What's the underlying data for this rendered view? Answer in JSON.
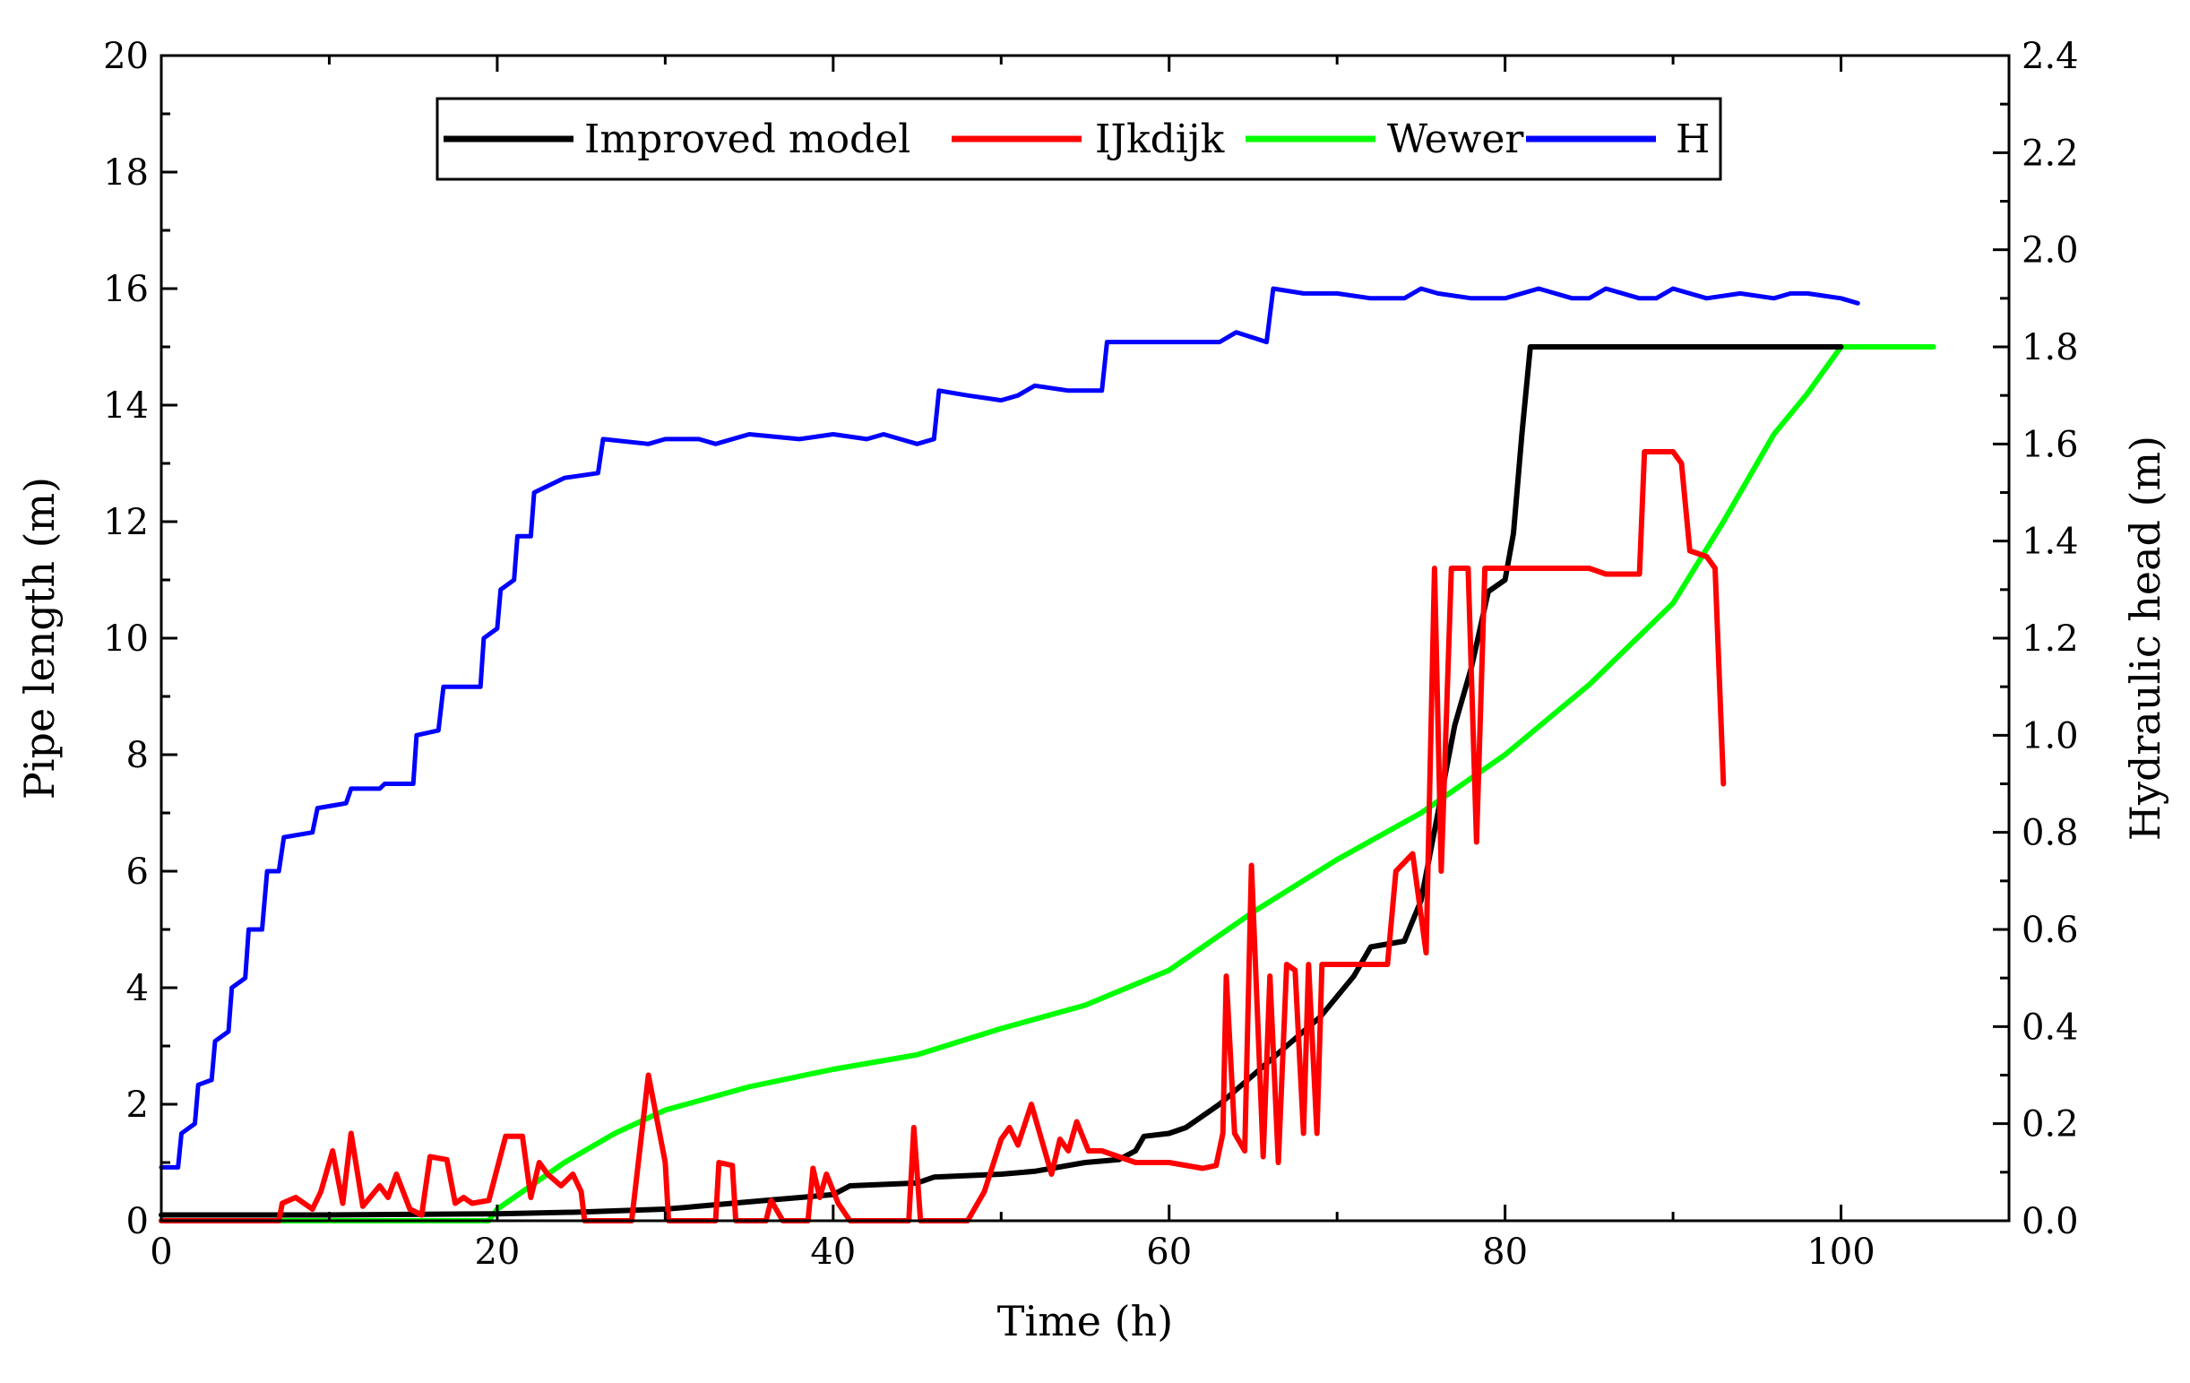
{
  "chart_data": {
    "type": "line",
    "xlabel": "Time (h)",
    "ylabel": "Pipe length (m)",
    "y2label": "Hydraulic head (m)",
    "xlim": [
      0,
      110
    ],
    "ylim": [
      0,
      20
    ],
    "y2lim": [
      0,
      2.4
    ],
    "xticks": [
      0,
      20,
      40,
      60,
      80,
      100
    ],
    "yticks": [
      0,
      2,
      4,
      6,
      8,
      10,
      12,
      14,
      16,
      18,
      20
    ],
    "y2ticks": [
      "0.0",
      "0.2",
      "0.4",
      "0.6",
      "0.8",
      "1.0",
      "1.2",
      "1.4",
      "1.6",
      "1.8",
      "2.0",
      "2.2",
      "2.4"
    ],
    "grid": false,
    "legend_position": "top-center",
    "series": [
      {
        "name": "Improved model",
        "color": "#000000",
        "axis": "left",
        "points": [
          [
            0,
            0.1
          ],
          [
            10,
            0.1
          ],
          [
            20,
            0.12
          ],
          [
            25,
            0.15
          ],
          [
            30,
            0.2
          ],
          [
            32,
            0.25
          ],
          [
            36,
            0.35
          ],
          [
            40,
            0.45
          ],
          [
            41,
            0.6
          ],
          [
            45,
            0.65
          ],
          [
            46,
            0.75
          ],
          [
            50,
            0.8
          ],
          [
            52,
            0.85
          ],
          [
            55,
            1.0
          ],
          [
            57,
            1.05
          ],
          [
            58,
            1.2
          ],
          [
            58.5,
            1.45
          ],
          [
            60,
            1.5
          ],
          [
            61,
            1.6
          ],
          [
            63,
            2.0
          ],
          [
            65,
            2.5
          ],
          [
            67,
            3.0
          ],
          [
            69,
            3.5
          ],
          [
            71,
            4.2
          ],
          [
            72,
            4.7
          ],
          [
            74,
            4.8
          ],
          [
            75,
            5.5
          ],
          [
            76,
            7.0
          ],
          [
            77,
            8.5
          ],
          [
            78,
            9.5
          ],
          [
            79,
            10.8
          ],
          [
            80,
            11.0
          ],
          [
            80.5,
            11.8
          ],
          [
            81,
            13.5
          ],
          [
            81.5,
            15.0
          ],
          [
            100,
            15.0
          ]
        ]
      },
      {
        "name": "IJkdijk",
        "color": "#ff0000",
        "axis": "left",
        "points": [
          [
            0,
            0
          ],
          [
            7,
            0
          ],
          [
            7.2,
            0.3
          ],
          [
            8,
            0.4
          ],
          [
            9,
            0.2
          ],
          [
            9.5,
            0.5
          ],
          [
            10.2,
            1.2
          ],
          [
            10.8,
            0.3
          ],
          [
            11.3,
            1.5
          ],
          [
            12,
            0.25
          ],
          [
            13,
            0.6
          ],
          [
            13.5,
            0.4
          ],
          [
            14,
            0.8
          ],
          [
            14.8,
            0.2
          ],
          [
            15.5,
            0.1
          ],
          [
            16,
            1.1
          ],
          [
            17,
            1.05
          ],
          [
            17.5,
            0.3
          ],
          [
            18,
            0.4
          ],
          [
            18.5,
            0.3
          ],
          [
            19.5,
            0.35
          ],
          [
            20.5,
            1.45
          ],
          [
            21.5,
            1.45
          ],
          [
            22,
            0.4
          ],
          [
            22.5,
            1.0
          ],
          [
            23,
            0.8
          ],
          [
            23.8,
            0.6
          ],
          [
            24.5,
            0.8
          ],
          [
            25,
            0.5
          ],
          [
            25.2,
            0
          ],
          [
            28,
            0
          ],
          [
            29,
            2.5
          ],
          [
            30,
            1.0
          ],
          [
            30.2,
            0
          ],
          [
            33,
            0
          ],
          [
            33.2,
            1.0
          ],
          [
            34,
            0.95
          ],
          [
            34.2,
            0
          ],
          [
            36,
            0
          ],
          [
            36.3,
            0.35
          ],
          [
            37,
            0
          ],
          [
            38.5,
            0
          ],
          [
            38.8,
            0.9
          ],
          [
            39.2,
            0.4
          ],
          [
            39.6,
            0.8
          ],
          [
            40.3,
            0.3
          ],
          [
            41,
            0
          ],
          [
            44,
            0
          ],
          [
            44.5,
            0
          ],
          [
            44.8,
            1.6
          ],
          [
            45.2,
            0
          ],
          [
            48,
            0
          ],
          [
            49,
            0.5
          ],
          [
            50,
            1.4
          ],
          [
            50.5,
            1.6
          ],
          [
            51,
            1.3
          ],
          [
            51.8,
            2.0
          ],
          [
            52.5,
            1.3
          ],
          [
            53,
            0.8
          ],
          [
            53.5,
            1.4
          ],
          [
            54,
            1.2
          ],
          [
            54.5,
            1.7
          ],
          [
            55.2,
            1.2
          ],
          [
            56,
            1.2
          ],
          [
            58,
            1.0
          ],
          [
            60,
            1.0
          ],
          [
            62,
            0.9
          ],
          [
            62.8,
            0.95
          ],
          [
            63.2,
            1.5
          ],
          [
            63.4,
            4.2
          ],
          [
            63.9,
            1.5
          ],
          [
            64.5,
            1.2
          ],
          [
            64.9,
            6.1
          ],
          [
            65.6,
            1.1
          ],
          [
            66,
            4.2
          ],
          [
            66.5,
            1.0
          ],
          [
            67,
            4.4
          ],
          [
            67.5,
            4.3
          ],
          [
            68,
            1.5
          ],
          [
            68.3,
            4.4
          ],
          [
            68.8,
            1.5
          ],
          [
            69.1,
            4.4
          ],
          [
            69.6,
            4.4
          ],
          [
            73,
            4.4
          ],
          [
            73.5,
            6.0
          ],
          [
            74.5,
            6.3
          ],
          [
            75.3,
            4.6
          ],
          [
            75.8,
            11.2
          ],
          [
            76.2,
            6.0
          ],
          [
            76.8,
            11.2
          ],
          [
            77.8,
            11.2
          ],
          [
            78.3,
            6.5
          ],
          [
            78.8,
            11.2
          ],
          [
            80,
            11.2
          ],
          [
            82,
            11.2
          ],
          [
            85,
            11.2
          ],
          [
            86,
            11.1
          ],
          [
            88,
            11.1
          ],
          [
            88.3,
            13.2
          ],
          [
            90,
            13.2
          ],
          [
            90.5,
            13.0
          ],
          [
            91,
            11.5
          ],
          [
            92,
            11.4
          ],
          [
            92.5,
            11.2
          ],
          [
            93,
            7.5
          ]
        ]
      },
      {
        "name": "Wewer",
        "color": "#00ff00",
        "axis": "left",
        "points": [
          [
            0,
            0
          ],
          [
            19.5,
            0
          ],
          [
            20,
            0.2
          ],
          [
            22,
            0.6
          ],
          [
            24,
            1.0
          ],
          [
            27,
            1.5
          ],
          [
            30,
            1.9
          ],
          [
            35,
            2.3
          ],
          [
            40,
            2.6
          ],
          [
            45,
            2.85
          ],
          [
            50,
            3.3
          ],
          [
            55,
            3.7
          ],
          [
            60,
            4.3
          ],
          [
            65,
            5.3
          ],
          [
            70,
            6.2
          ],
          [
            75,
            7.0
          ],
          [
            80,
            8.0
          ],
          [
            85,
            9.2
          ],
          [
            90,
            10.6
          ],
          [
            93,
            12.0
          ],
          [
            96,
            13.5
          ],
          [
            98,
            14.2
          ],
          [
            100,
            15.0
          ],
          [
            100.3,
            15.0
          ],
          [
            105.5,
            15.0
          ]
        ]
      },
      {
        "name": "H",
        "color": "#0000ff",
        "axis": "right",
        "points": [
          [
            0,
            0.11
          ],
          [
            1,
            0.11
          ],
          [
            1.2,
            0.18
          ],
          [
            2,
            0.2
          ],
          [
            2.2,
            0.28
          ],
          [
            3,
            0.29
          ],
          [
            3.2,
            0.37
          ],
          [
            4,
            0.39
          ],
          [
            4.2,
            0.48
          ],
          [
            5,
            0.5
          ],
          [
            5.2,
            0.6
          ],
          [
            6,
            0.6
          ],
          [
            6.3,
            0.72
          ],
          [
            7,
            0.72
          ],
          [
            7.3,
            0.79
          ],
          [
            9,
            0.8
          ],
          [
            9.3,
            0.85
          ],
          [
            11,
            0.86
          ],
          [
            11.3,
            0.89
          ],
          [
            13,
            0.89
          ],
          [
            13.3,
            0.9
          ],
          [
            15,
            0.9
          ],
          [
            15.2,
            1.0
          ],
          [
            16.5,
            1.01
          ],
          [
            16.8,
            1.1
          ],
          [
            19,
            1.1
          ],
          [
            19.2,
            1.2
          ],
          [
            20,
            1.22
          ],
          [
            20.2,
            1.3
          ],
          [
            21,
            1.32
          ],
          [
            21.2,
            1.41
          ],
          [
            22,
            1.41
          ],
          [
            22.2,
            1.5
          ],
          [
            24,
            1.53
          ],
          [
            26,
            1.54
          ],
          [
            26.3,
            1.61
          ],
          [
            29,
            1.6
          ],
          [
            30,
            1.61
          ],
          [
            32,
            1.61
          ],
          [
            33,
            1.6
          ],
          [
            35,
            1.62
          ],
          [
            38,
            1.61
          ],
          [
            40,
            1.62
          ],
          [
            42,
            1.61
          ],
          [
            43,
            1.62
          ],
          [
            45,
            1.6
          ],
          [
            46,
            1.61
          ],
          [
            46.3,
            1.71
          ],
          [
            48,
            1.7
          ],
          [
            50,
            1.69
          ],
          [
            51,
            1.7
          ],
          [
            52,
            1.72
          ],
          [
            54,
            1.71
          ],
          [
            56,
            1.71
          ],
          [
            56.3,
            1.81
          ],
          [
            58,
            1.81
          ],
          [
            60,
            1.81
          ],
          [
            62,
            1.81
          ],
          [
            63,
            1.81
          ],
          [
            64,
            1.83
          ],
          [
            65.8,
            1.81
          ],
          [
            66.2,
            1.92
          ],
          [
            68,
            1.91
          ],
          [
            70,
            1.91
          ],
          [
            72,
            1.9
          ],
          [
            74,
            1.9
          ],
          [
            75,
            1.92
          ],
          [
            76,
            1.91
          ],
          [
            78,
            1.9
          ],
          [
            80,
            1.9
          ],
          [
            82,
            1.92
          ],
          [
            84,
            1.9
          ],
          [
            85,
            1.9
          ],
          [
            86,
            1.92
          ],
          [
            88,
            1.9
          ],
          [
            89,
            1.9
          ],
          [
            90,
            1.92
          ],
          [
            92,
            1.9
          ],
          [
            94,
            1.91
          ],
          [
            96,
            1.9
          ],
          [
            97,
            1.91
          ],
          [
            98,
            1.91
          ],
          [
            100,
            1.9
          ],
          [
            101,
            1.89
          ]
        ]
      }
    ]
  }
}
